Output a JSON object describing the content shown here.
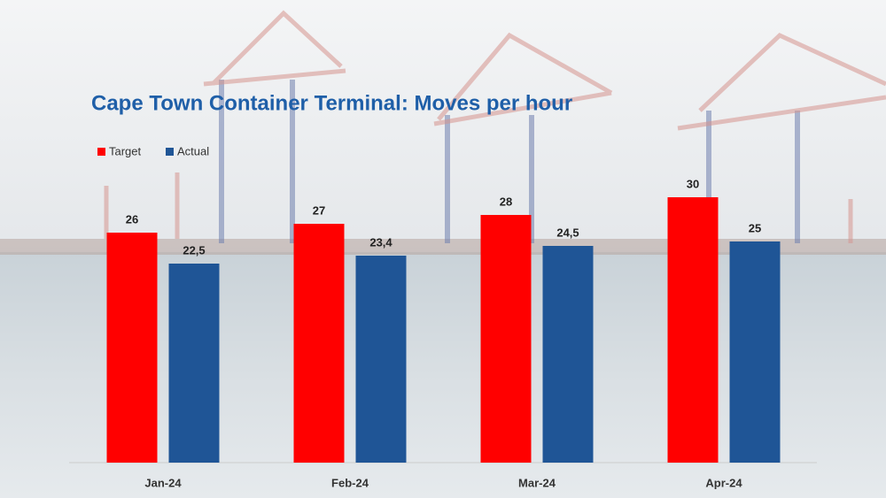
{
  "chart_data": {
    "type": "bar",
    "title": "Cape Town Container Terminal: Moves per hour",
    "categories": [
      "Jan-24",
      "Feb-24",
      "Mar-24",
      "Apr-24"
    ],
    "series": [
      {
        "name": "Target",
        "color": "#ff0000",
        "values": [
          26,
          27,
          28,
          30
        ],
        "value_labels": [
          "26",
          "27",
          "28",
          "30"
        ]
      },
      {
        "name": "Actual",
        "color": "#1f5596",
        "values": [
          22.5,
          23.4,
          24.5,
          25
        ],
        "value_labels": [
          "22,5",
          "23,4",
          "24,5",
          "25"
        ]
      }
    ],
    "ylim": [
      0,
      35
    ],
    "legend": "top-left"
  }
}
